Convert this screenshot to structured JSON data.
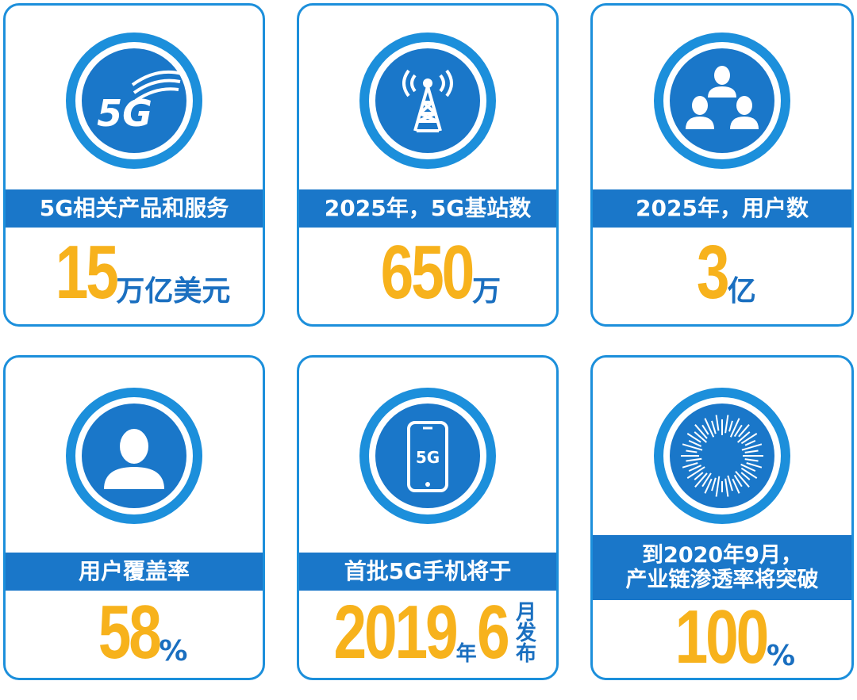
{
  "colors": {
    "primary_blue": "#1a77c9",
    "border_blue": "#1c8fdb",
    "accent_yellow": "#f7b21c",
    "unit_blue": "#1a6fc0"
  },
  "cards": [
    {
      "icon": "5g-signal-icon",
      "icon_text": "5G",
      "label": "5G相关产品和服务",
      "number": "15",
      "unit": "万亿美元"
    },
    {
      "icon": "cell-tower-icon",
      "label": "2025年，5G基站数",
      "number": "650",
      "unit": "万"
    },
    {
      "icon": "users-group-icon",
      "label": "2025年，用户数",
      "number": "3",
      "unit": "亿"
    },
    {
      "icon": "user-icon",
      "label": "用户覆盖率",
      "number": "58",
      "unit": "%"
    },
    {
      "icon": "smartphone-icon",
      "icon_text": "5G",
      "label": "首批5G手机将于",
      "number_year": "2019",
      "unit_year": "年",
      "number_month": "6",
      "unit_month": "月发布"
    },
    {
      "icon": "sunburst-icon",
      "label_line1": "到2020年9月，",
      "label_line2": "产业链渗透率将突破",
      "number": "100",
      "unit": "%"
    }
  ]
}
